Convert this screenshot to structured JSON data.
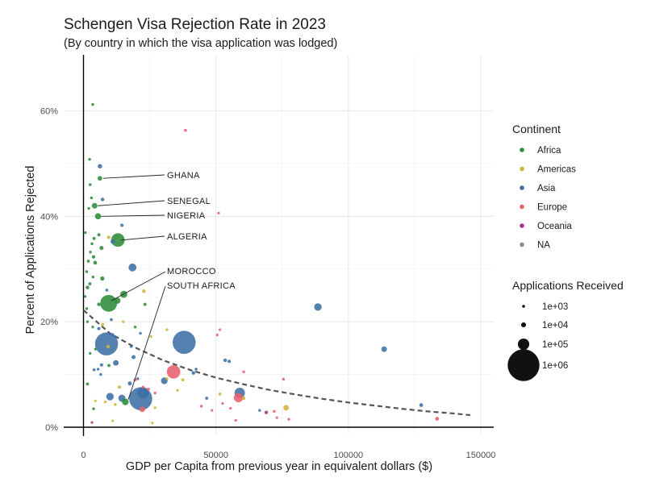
{
  "chart_data": {
    "type": "scatter",
    "title": "Schengen Visa Rejection Rate in 2023",
    "subtitle": "(By country in which the visa application was lodged)",
    "xlabel": "GDP per Capita from previous year in equivalent dollars ($)",
    "ylabel": "Percent of Applications Rejected",
    "xlim": [
      -5000,
      155000
    ],
    "ylim": [
      -0.5,
      70
    ],
    "x_ticks": [
      0,
      50000,
      100000,
      150000
    ],
    "x_tick_labels": [
      "0",
      "50000",
      "100000",
      "150000"
    ],
    "y_ticks": [
      0,
      20,
      40,
      60
    ],
    "y_tick_labels": [
      "0%",
      "20%",
      "40%",
      "60%"
    ],
    "grid": true,
    "colors": {
      "Africa": "#2e8b3a",
      "Americas": "#cdb53b",
      "Asia": "#3d6fa5",
      "Europe": "#e8606e",
      "Oceania": "#a8347f",
      "NA": "#8a8a8a"
    },
    "legend_color": {
      "title": "Continent",
      "entries": [
        "Africa",
        "Americas",
        "Asia",
        "Europe",
        "Oceania",
        "NA"
      ],
      "placement": "right"
    },
    "legend_size": {
      "title": "Applications Received",
      "entries": [
        {
          "label": "1e+03",
          "value": 1000
        },
        {
          "label": "1e+04",
          "value": 10000
        },
        {
          "label": "1e+05",
          "value": 100000
        },
        {
          "label": "1e+06",
          "value": 1000000
        }
      ],
      "placement": "right"
    },
    "trend": {
      "style": "dashed",
      "points": [
        [
          0,
          22.2
        ],
        [
          10000,
          17.8
        ],
        [
          20000,
          15.0
        ],
        [
          30000,
          12.7
        ],
        [
          40000,
          10.9
        ],
        [
          50000,
          9.4
        ],
        [
          60000,
          8.2
        ],
        [
          70000,
          7.1
        ],
        [
          80000,
          6.2
        ],
        [
          90000,
          5.4
        ],
        [
          100000,
          4.7
        ],
        [
          110000,
          4.1
        ],
        [
          120000,
          3.5
        ],
        [
          130000,
          3.0
        ],
        [
          140000,
          2.6
        ],
        [
          146000,
          2.3
        ]
      ]
    },
    "annotations": [
      {
        "label": "GHANA",
        "x": 6200,
        "y": 47.2
      },
      {
        "label": "SENEGAL",
        "x": 4200,
        "y": 42.0
      },
      {
        "label": "NIGERIA",
        "x": 5500,
        "y": 40.0
      },
      {
        "label": "ALGERIA",
        "x": 13000,
        "y": 35.5
      },
      {
        "label": "MOROCCO",
        "x": 9500,
        "y": 23.5
      },
      {
        "label": "SOUTH AFRICA",
        "x": 16000,
        "y": 4.8
      }
    ],
    "points": [
      {
        "x": 3500,
        "y": 61.2,
        "size": 800,
        "continent": "Africa"
      },
      {
        "x": 38500,
        "y": 56.3,
        "size": 1000,
        "continent": "Europe"
      },
      {
        "x": 2300,
        "y": 50.8,
        "size": 700,
        "continent": "Africa"
      },
      {
        "x": 6200,
        "y": 49.5,
        "size": 7000,
        "continent": "Asia"
      },
      {
        "x": 6200,
        "y": 47.2,
        "size": 8000,
        "continent": "Africa"
      },
      {
        "x": 2500,
        "y": 46.0,
        "size": 900,
        "continent": "Africa"
      },
      {
        "x": 3000,
        "y": 43.5,
        "size": 800,
        "continent": "Africa"
      },
      {
        "x": 7200,
        "y": 43.2,
        "size": 3000,
        "continent": "Asia"
      },
      {
        "x": 4200,
        "y": 42.0,
        "size": 15000,
        "continent": "Africa"
      },
      {
        "x": 2000,
        "y": 41.5,
        "size": 700,
        "continent": "Africa"
      },
      {
        "x": 51000,
        "y": 40.6,
        "size": 500,
        "continent": "Europe"
      },
      {
        "x": 5500,
        "y": 40.0,
        "size": 20000,
        "continent": "Africa"
      },
      {
        "x": 14500,
        "y": 38.3,
        "size": 2000,
        "continent": "Asia"
      },
      {
        "x": 700,
        "y": 36.9,
        "size": 600,
        "continent": "Africa"
      },
      {
        "x": 5800,
        "y": 36.5,
        "size": 1800,
        "continent": "Africa"
      },
      {
        "x": 9500,
        "y": 36.0,
        "size": 2500,
        "continent": "Americas"
      },
      {
        "x": 4000,
        "y": 35.8,
        "size": 1500,
        "continent": "Africa"
      },
      {
        "x": 13000,
        "y": 35.5,
        "size": 150000,
        "continent": "Africa"
      },
      {
        "x": 11000,
        "y": 35.2,
        "size": 6000,
        "continent": "Asia"
      },
      {
        "x": 3200,
        "y": 34.8,
        "size": 900,
        "continent": "Africa"
      },
      {
        "x": 6800,
        "y": 34.0,
        "size": 5000,
        "continent": "Africa"
      },
      {
        "x": 2600,
        "y": 33.2,
        "size": 700,
        "continent": "Africa"
      },
      {
        "x": 3800,
        "y": 32.3,
        "size": 2000,
        "continent": "Africa"
      },
      {
        "x": 1800,
        "y": 31.5,
        "size": 1200,
        "continent": "Africa"
      },
      {
        "x": 4400,
        "y": 31.2,
        "size": 4000,
        "continent": "Africa"
      },
      {
        "x": 18500,
        "y": 30.3,
        "size": 40000,
        "continent": "Asia"
      },
      {
        "x": 1200,
        "y": 29.5,
        "size": 900,
        "continent": "Africa"
      },
      {
        "x": 3600,
        "y": 28.5,
        "size": 700,
        "continent": "Africa"
      },
      {
        "x": 7100,
        "y": 28.2,
        "size": 6000,
        "continent": "Africa"
      },
      {
        "x": 2400,
        "y": 27.2,
        "size": 1500,
        "continent": "Africa"
      },
      {
        "x": 1500,
        "y": 26.5,
        "size": 3000,
        "continent": "Africa"
      },
      {
        "x": 8800,
        "y": 26.0,
        "size": 1200,
        "continent": "Asia"
      },
      {
        "x": 22800,
        "y": 25.8,
        "size": 3000,
        "continent": "Americas"
      },
      {
        "x": 15200,
        "y": 25.2,
        "size": 30000,
        "continent": "Africa"
      },
      {
        "x": 600,
        "y": 24.8,
        "size": 600,
        "continent": "Africa"
      },
      {
        "x": 12800,
        "y": 24.0,
        "size": 20000,
        "continent": "Africa"
      },
      {
        "x": 9500,
        "y": 23.5,
        "size": 250000,
        "continent": "Africa"
      },
      {
        "x": 5800,
        "y": 23.3,
        "size": 3000,
        "continent": "Africa"
      },
      {
        "x": 23200,
        "y": 23.3,
        "size": 1500,
        "continent": "Africa"
      },
      {
        "x": 1200,
        "y": 22.5,
        "size": 700,
        "continent": "Africa"
      },
      {
        "x": 88500,
        "y": 22.8,
        "size": 35000,
        "continent": "Asia"
      },
      {
        "x": 10500,
        "y": 20.4,
        "size": 1200,
        "continent": "Asia"
      },
      {
        "x": 15000,
        "y": 20.0,
        "size": 800,
        "continent": "Americas"
      },
      {
        "x": 7200,
        "y": 19.5,
        "size": 1500,
        "continent": "Americas"
      },
      {
        "x": 19500,
        "y": 19.0,
        "size": 800,
        "continent": "Africa"
      },
      {
        "x": 3500,
        "y": 19.0,
        "size": 500,
        "continent": "Africa"
      },
      {
        "x": 5800,
        "y": 18.7,
        "size": 2000,
        "continent": "Asia"
      },
      {
        "x": 31500,
        "y": 18.5,
        "size": 900,
        "continent": "Americas"
      },
      {
        "x": 21500,
        "y": 17.8,
        "size": 800,
        "continent": "Asia"
      },
      {
        "x": 51500,
        "y": 18.5,
        "size": 500,
        "continent": "Europe"
      },
      {
        "x": 11000,
        "y": 17.5,
        "size": 3000,
        "continent": "Asia"
      },
      {
        "x": 25500,
        "y": 17.2,
        "size": 600,
        "continent": "Americas"
      },
      {
        "x": 50500,
        "y": 17.5,
        "size": 500,
        "continent": "Europe"
      },
      {
        "x": 8700,
        "y": 15.8,
        "size": 500000,
        "continent": "Asia"
      },
      {
        "x": 38000,
        "y": 16.1,
        "size": 500000,
        "continent": "Asia"
      },
      {
        "x": 4500,
        "y": 14.8,
        "size": 600,
        "continent": "Africa"
      },
      {
        "x": 18000,
        "y": 15.3,
        "size": 900,
        "continent": "Asia"
      },
      {
        "x": 9300,
        "y": 15.3,
        "size": 2500,
        "continent": "Americas"
      },
      {
        "x": 18900,
        "y": 13.3,
        "size": 5000,
        "continent": "Asia"
      },
      {
        "x": 12200,
        "y": 12.2,
        "size": 15000,
        "continent": "Asia"
      },
      {
        "x": 6800,
        "y": 11.8,
        "size": 2000,
        "continent": "Asia"
      },
      {
        "x": 5500,
        "y": 11.0,
        "size": 700,
        "continent": "Asia"
      },
      {
        "x": 9600,
        "y": 11.7,
        "size": 1500,
        "continent": "Africa"
      },
      {
        "x": 4000,
        "y": 10.9,
        "size": 1200,
        "continent": "Asia"
      },
      {
        "x": 53500,
        "y": 12.7,
        "size": 3000,
        "continent": "Asia"
      },
      {
        "x": 55000,
        "y": 12.5,
        "size": 2000,
        "continent": "Asia"
      },
      {
        "x": 34000,
        "y": 10.5,
        "size": 150000,
        "continent": "Europe"
      },
      {
        "x": 41500,
        "y": 10.3,
        "size": 3000,
        "continent": "Asia"
      },
      {
        "x": 42500,
        "y": 11.0,
        "size": 1200,
        "continent": "Asia"
      },
      {
        "x": 113500,
        "y": 14.8,
        "size": 15000,
        "continent": "Asia"
      },
      {
        "x": 6500,
        "y": 10.0,
        "size": 800,
        "continent": "Asia"
      },
      {
        "x": 60500,
        "y": 10.5,
        "size": 700,
        "continent": "Europe"
      },
      {
        "x": 20500,
        "y": 9.2,
        "size": 800,
        "continent": "Asia"
      },
      {
        "x": 19500,
        "y": 9.0,
        "size": 1500,
        "continent": "Europe"
      },
      {
        "x": 30500,
        "y": 8.8,
        "size": 25000,
        "continent": "Asia"
      },
      {
        "x": 31500,
        "y": 9.2,
        "size": 800,
        "continent": "Americas"
      },
      {
        "x": 37500,
        "y": 9.0,
        "size": 1500,
        "continent": "Americas"
      },
      {
        "x": 75500,
        "y": 9.1,
        "size": 700,
        "continent": "Europe"
      },
      {
        "x": 17500,
        "y": 8.3,
        "size": 5000,
        "continent": "Asia"
      },
      {
        "x": 22500,
        "y": 7.6,
        "size": 800,
        "continent": "Europe"
      },
      {
        "x": 13500,
        "y": 7.6,
        "size": 2000,
        "continent": "Americas"
      },
      {
        "x": 1500,
        "y": 8.2,
        "size": 1500,
        "continent": "Africa"
      },
      {
        "x": 22500,
        "y": 6.5,
        "size": 100000,
        "continent": "Asia"
      },
      {
        "x": 24500,
        "y": 7.2,
        "size": 1500,
        "continent": "Europe"
      },
      {
        "x": 27000,
        "y": 6.5,
        "size": 700,
        "continent": "Europe"
      },
      {
        "x": 35500,
        "y": 7.0,
        "size": 700,
        "continent": "Americas"
      },
      {
        "x": 51500,
        "y": 6.3,
        "size": 1200,
        "continent": "Americas"
      },
      {
        "x": 59000,
        "y": 6.5,
        "size": 80000,
        "continent": "Asia"
      },
      {
        "x": 60500,
        "y": 5.5,
        "size": 3000,
        "continent": "Americas"
      },
      {
        "x": 58500,
        "y": 5.6,
        "size": 60000,
        "continent": "Europe"
      },
      {
        "x": 46500,
        "y": 5.5,
        "size": 1500,
        "continent": "Asia"
      },
      {
        "x": 10000,
        "y": 5.8,
        "size": 35000,
        "continent": "Asia"
      },
      {
        "x": 14500,
        "y": 5.5,
        "size": 30000,
        "continent": "Asia"
      },
      {
        "x": 15800,
        "y": 4.8,
        "size": 25000,
        "continent": "Africa"
      },
      {
        "x": 21600,
        "y": 5.4,
        "size": 500000,
        "continent": "Asia"
      },
      {
        "x": 4500,
        "y": 5.0,
        "size": 500,
        "continent": "Americas"
      },
      {
        "x": 8200,
        "y": 4.8,
        "size": 700,
        "continent": "Americas"
      },
      {
        "x": 12000,
        "y": 4.3,
        "size": 800,
        "continent": "Americas"
      },
      {
        "x": 52500,
        "y": 4.5,
        "size": 500,
        "continent": "Europe"
      },
      {
        "x": 44500,
        "y": 4.0,
        "size": 700,
        "continent": "Europe"
      },
      {
        "x": 76500,
        "y": 3.7,
        "size": 15000,
        "continent": "Americas"
      },
      {
        "x": 22200,
        "y": 3.4,
        "size": 15000,
        "continent": "Europe"
      },
      {
        "x": 3800,
        "y": 3.5,
        "size": 800,
        "continent": "Africa"
      },
      {
        "x": 27000,
        "y": 3.7,
        "size": 500,
        "continent": "Americas"
      },
      {
        "x": 48500,
        "y": 3.2,
        "size": 500,
        "continent": "Europe"
      },
      {
        "x": 66500,
        "y": 3.2,
        "size": 800,
        "continent": "Asia"
      },
      {
        "x": 69000,
        "y": 2.8,
        "size": 3000,
        "continent": "Oceania"
      },
      {
        "x": 72000,
        "y": 3.0,
        "size": 900,
        "continent": "Europe"
      },
      {
        "x": 55500,
        "y": 3.6,
        "size": 500,
        "continent": "Europe"
      },
      {
        "x": 77500,
        "y": 1.5,
        "size": 600,
        "continent": "Europe"
      },
      {
        "x": 73000,
        "y": 1.8,
        "size": 500,
        "continent": "Europe"
      },
      {
        "x": 57500,
        "y": 1.3,
        "size": 600,
        "continent": "Europe"
      },
      {
        "x": 127500,
        "y": 4.2,
        "size": 4000,
        "continent": "Asia"
      },
      {
        "x": 133500,
        "y": 1.6,
        "size": 4000,
        "continent": "Europe"
      },
      {
        "x": 26000,
        "y": 0.8,
        "size": 500,
        "continent": "Americas"
      },
      {
        "x": 11000,
        "y": 1.2,
        "size": 500,
        "continent": "Americas"
      },
      {
        "x": 3200,
        "y": 0.9,
        "size": 500,
        "continent": "Oceania"
      },
      {
        "x": 2500,
        "y": 14.0,
        "size": 500,
        "continent": "Africa"
      },
      {
        "x": 1500,
        "y": 20.0,
        "size": 500,
        "continent": "Africa"
      }
    ]
  }
}
